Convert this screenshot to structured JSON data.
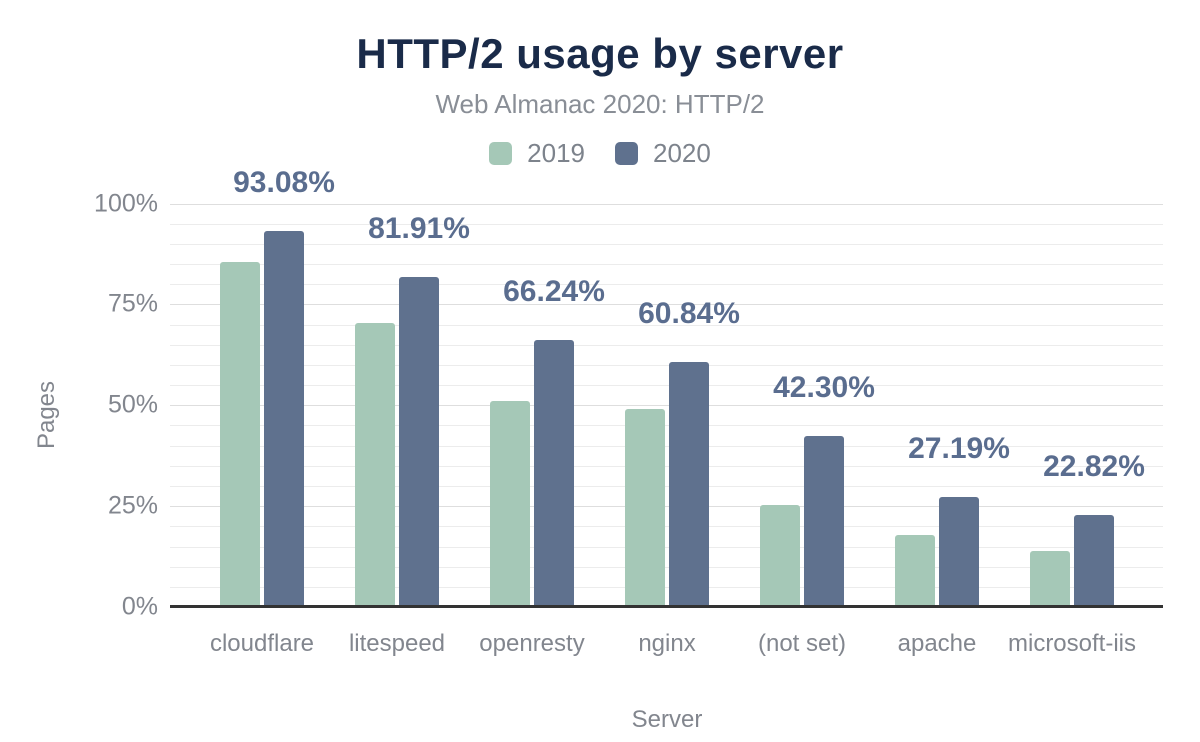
{
  "chart_data": {
    "type": "bar",
    "title": "HTTP/2 usage by server",
    "subtitle": "Web Almanac 2020: HTTP/2",
    "xlabel": "Server",
    "ylabel": "Pages",
    "categories": [
      "cloudflare",
      "litespeed",
      "openresty",
      "nginx",
      "(not set)",
      "apache",
      "microsoft-iis"
    ],
    "series": [
      {
        "name": "2019",
        "values": [
          85.4,
          70.5,
          51.0,
          49.1,
          25.3,
          17.8,
          13.9
        ],
        "color": "#a5c8b7",
        "data_labels": null
      },
      {
        "name": "2020",
        "values": [
          93.08,
          81.91,
          66.24,
          60.84,
          42.3,
          27.19,
          22.82
        ],
        "color": "#5f718e",
        "data_labels": [
          "93.08%",
          "81.91%",
          "66.24%",
          "60.84%",
          "42.30%",
          "27.19%",
          "22.82%"
        ]
      }
    ],
    "ylim": [
      0,
      100
    ],
    "ytick_values": [
      0,
      25,
      50,
      75,
      100
    ],
    "ytick_labels": [
      "0%",
      "25%",
      "50%",
      "75%",
      "100%"
    ],
    "grid": "horizontal minor lines every 5%, major every 25%",
    "legend_position": "top-center",
    "colors": {
      "title": "#1a2b49",
      "subtitle": "#898e96",
      "legend_text": "#7d838c",
      "axis_text": "#82868e",
      "data_label_text": "#5a6d8f",
      "gridline_minor": "#ececec",
      "gridline_major": "#dedede",
      "axis_line": "#333333",
      "background": "#ffffff"
    }
  }
}
